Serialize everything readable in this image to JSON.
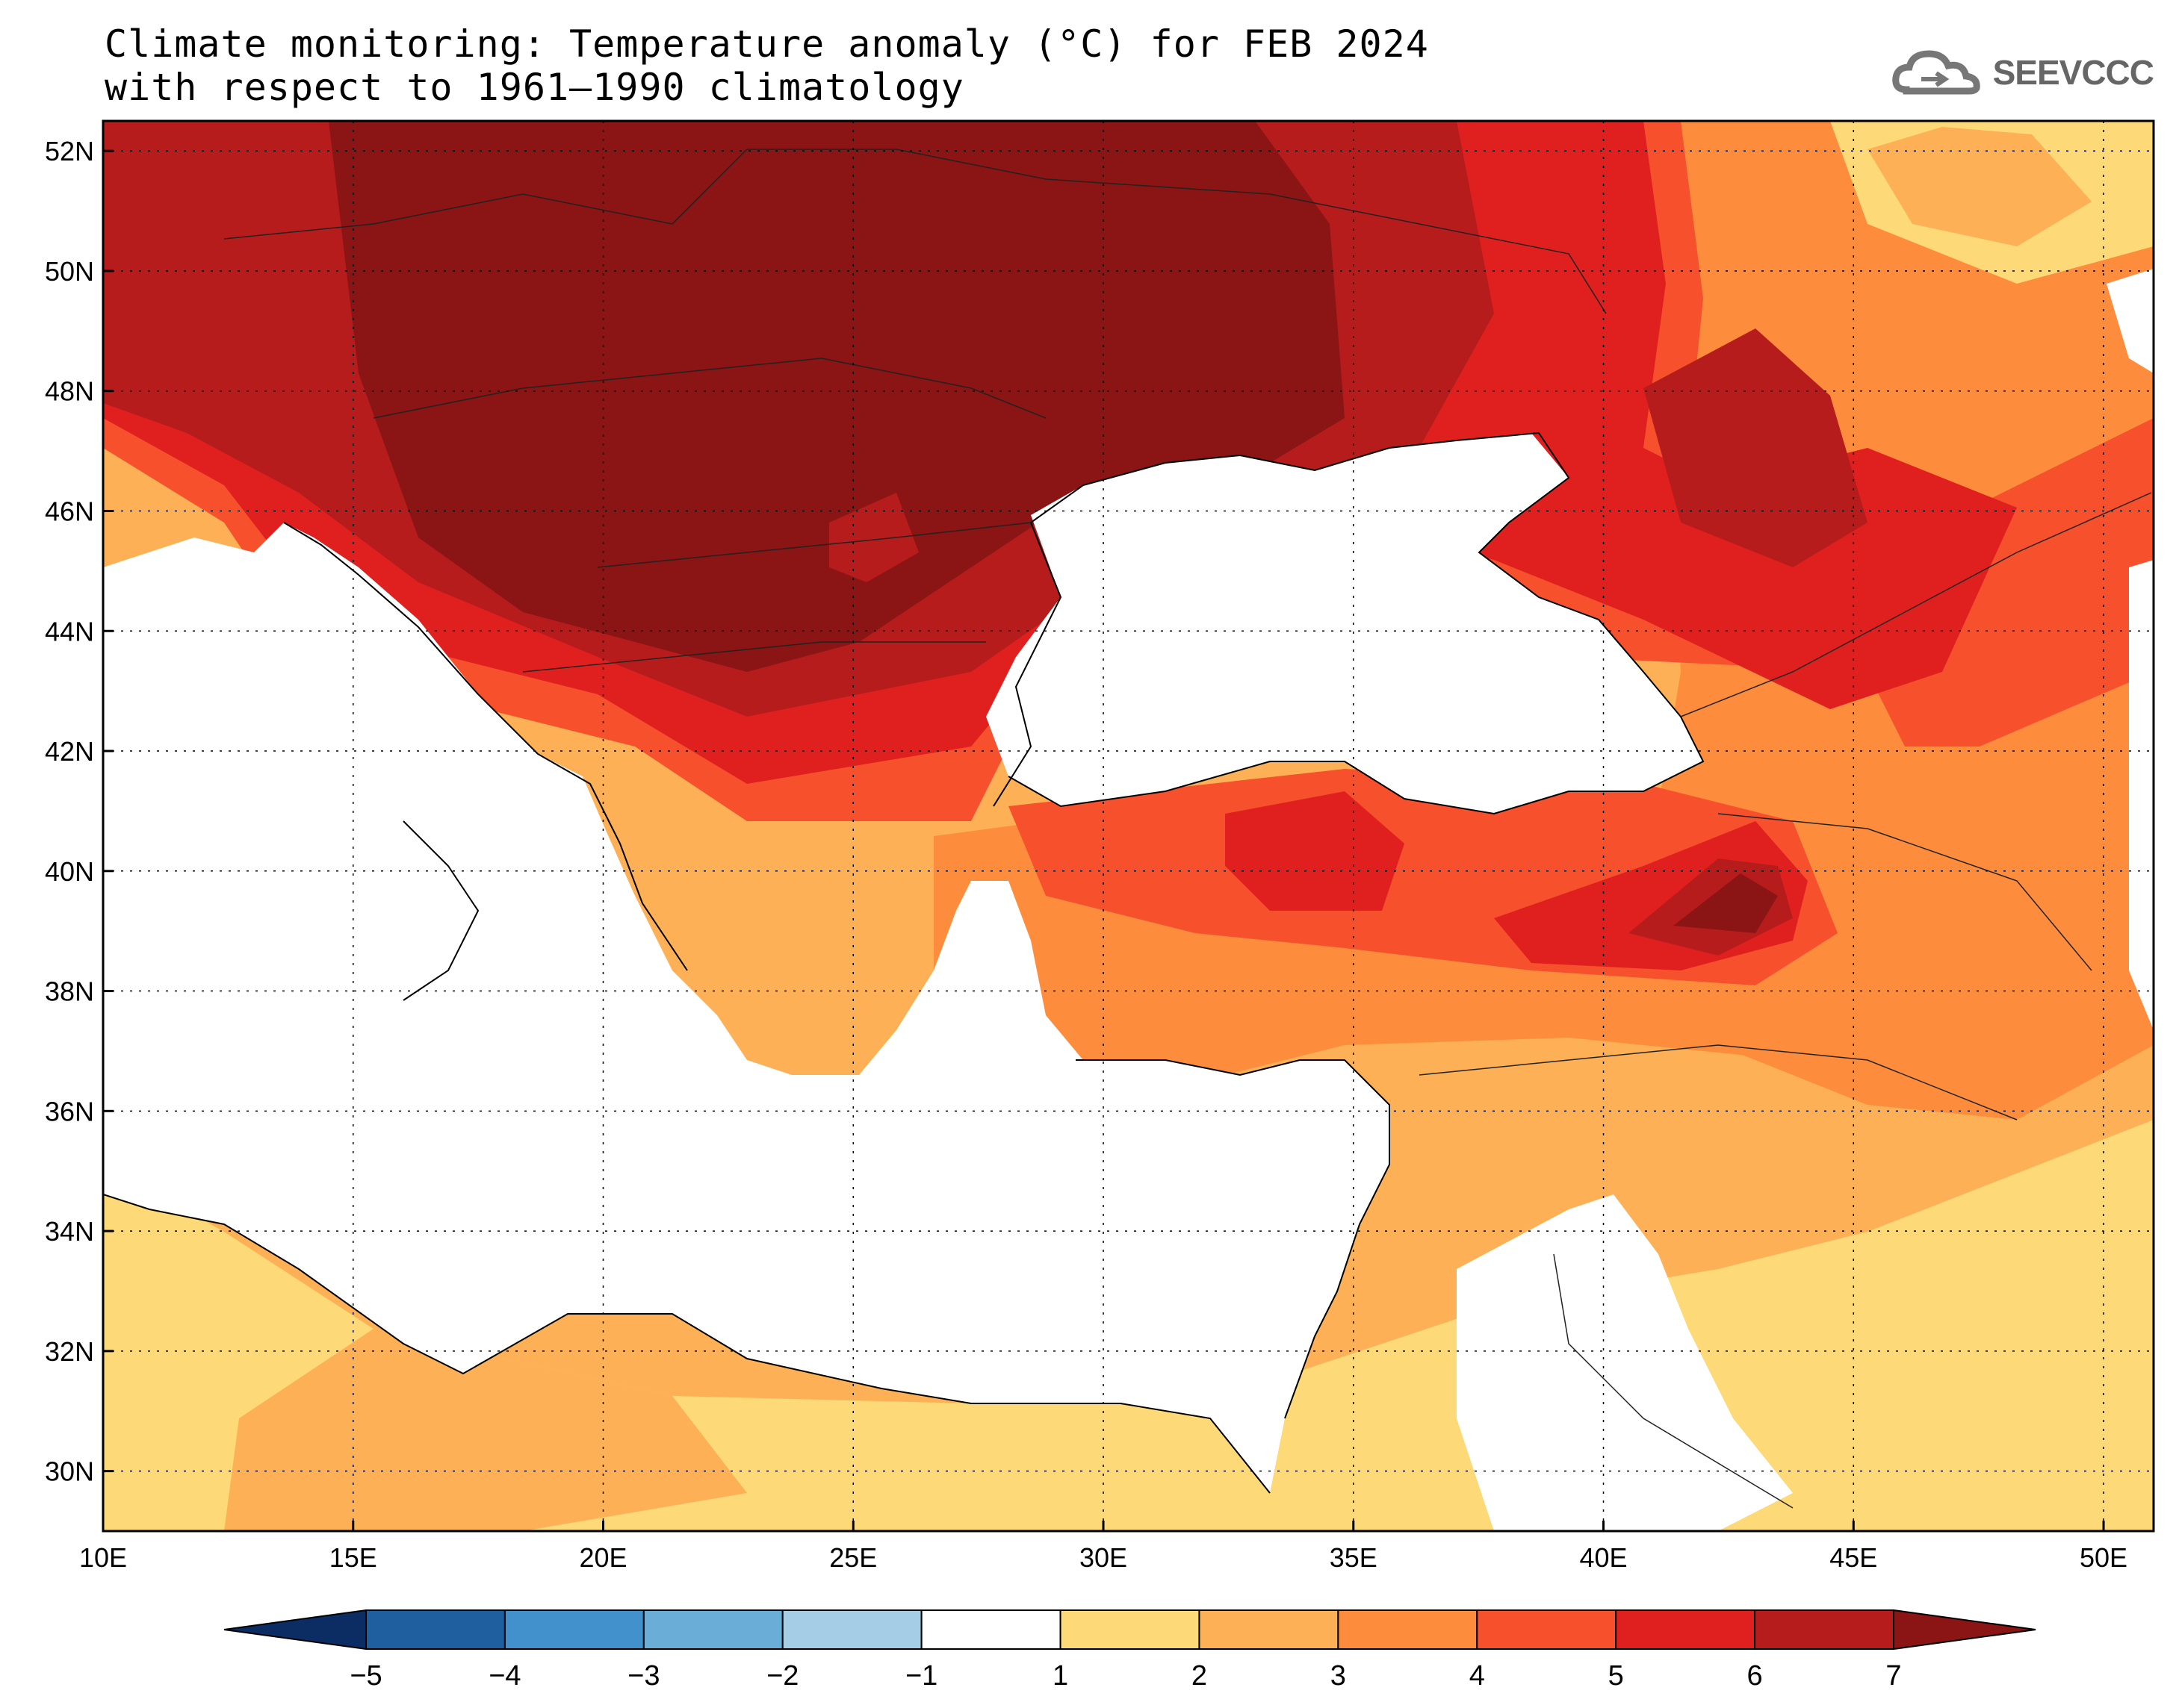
{
  "title": {
    "line1": "Climate monitoring: Temperature anomaly (°C) for FEB 2024",
    "line2": "with respect to 1961–1990 climatology"
  },
  "logo": {
    "text": "SEEVCCC",
    "icon": "cloud-icon"
  },
  "map": {
    "lon_range": [
      10,
      51
    ],
    "lat_range": [
      29,
      52.5
    ],
    "lon_ticks": [
      "10E",
      "15E",
      "20E",
      "25E",
      "30E",
      "35E",
      "40E",
      "45E",
      "50E"
    ],
    "lat_ticks": [
      "30N",
      "32N",
      "34N",
      "36N",
      "38N",
      "40N",
      "42N",
      "44N",
      "46N",
      "48N",
      "50N",
      "52N"
    ],
    "grid": true
  },
  "colorbar": {
    "labels": [
      "-5",
      "-4",
      "-3",
      "-2",
      "-1",
      "1",
      "2",
      "3",
      "4",
      "5",
      "6",
      "7"
    ],
    "colors": [
      "#0b2d64",
      "#1f5fa0",
      "#4290cc",
      "#6aaed8",
      "#a5cde5",
      "#ffffff",
      "#fed977",
      "#fdb055",
      "#fd8d3c",
      "#f6502c",
      "#e0201f",
      "#b71c1c",
      "#8b1414"
    ]
  },
  "anomaly_colors": {
    "c1": "#fed977",
    "c2": "#fdb055",
    "c3": "#fd8d3c",
    "c4": "#f6502c",
    "c5": "#e0201f",
    "c6": "#b71c1c",
    "c7": "#8b1414"
  }
}
